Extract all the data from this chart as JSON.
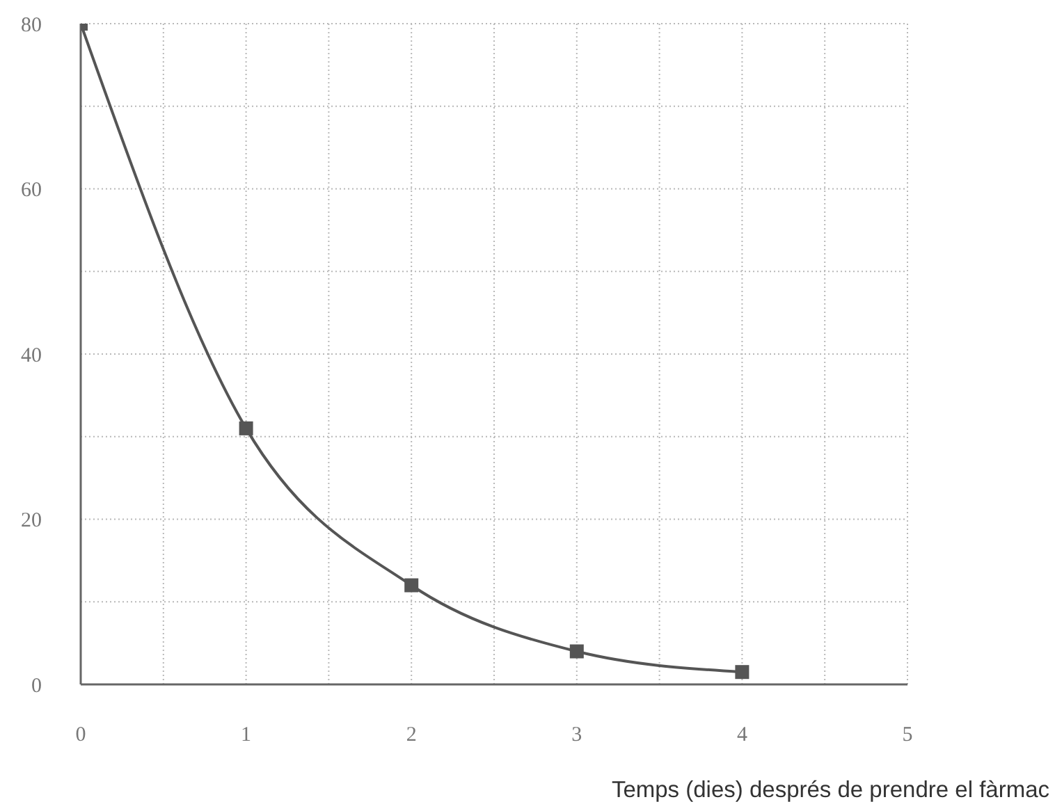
{
  "chart_data": {
    "type": "line",
    "xlabel": "Temps (dies) després de prendre el fàrmac",
    "x": [
      0,
      1,
      2,
      3,
      4
    ],
    "values": [
      80,
      31,
      12,
      4,
      1.5
    ],
    "color": "#555555",
    "xlim": [
      0,
      5
    ],
    "xticks": [
      0,
      {
        "value": 0.5,
        "label": null
      },
      1,
      {
        "value": 1.5,
        "label": null
      },
      2,
      {
        "value": 2.5,
        "label": null
      },
      3,
      {
        "value": 3.5,
        "label": null
      },
      4,
      {
        "value": 4.5,
        "label": null
      },
      5
    ],
    "ylim": [
      0,
      80
    ],
    "yticks": [
      0,
      {
        "value": 10,
        "label": null
      },
      20,
      {
        "value": 30,
        "label": null
      },
      40,
      {
        "value": 50,
        "label": null
      },
      60,
      {
        "value": 70,
        "label": null
      },
      80
    ],
    "grid": true,
    "marker": "square",
    "line_style": "solid"
  }
}
